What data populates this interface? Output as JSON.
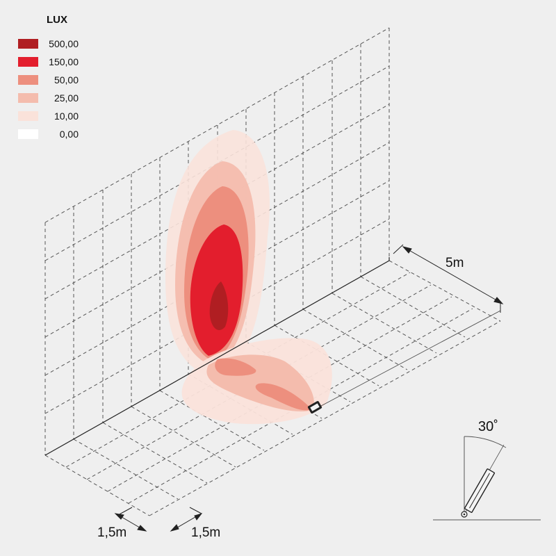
{
  "legend": {
    "title": "LUX",
    "items": [
      {
        "label": "500,00",
        "color": "#b01e22"
      },
      {
        "label": "150,00",
        "color": "#e31e2d"
      },
      {
        "label": "50,00",
        "color": "#ed8f7e"
      },
      {
        "label": "25,00",
        "color": "#f4bcad"
      },
      {
        "label": "10,00",
        "color": "#fae2da"
      },
      {
        "label": "0,00",
        "color": "#ffffff"
      }
    ]
  },
  "dimensions": {
    "depth": "5m",
    "grid_cell_a": "1,5m",
    "grid_cell_b": "1,5m"
  },
  "tilt": {
    "angle": "30˚"
  }
}
